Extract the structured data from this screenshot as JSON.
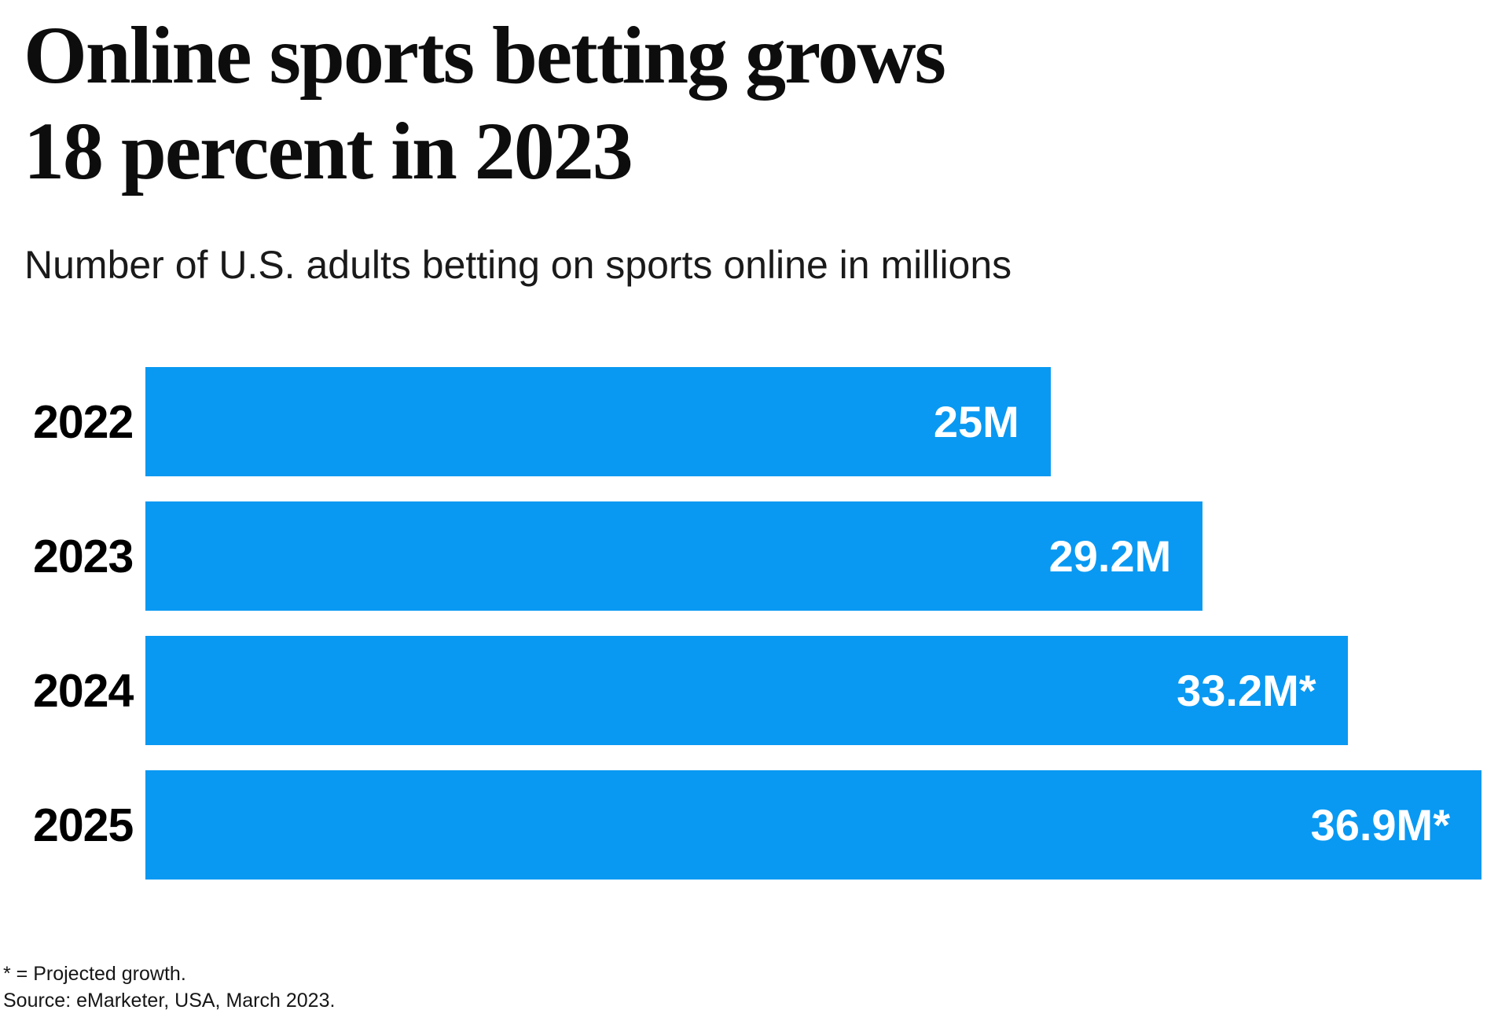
{
  "header": {
    "title_line1": "Online sports betting grows",
    "title_line2": "18 percent in 2023",
    "subtitle": "Number of U.S. adults betting on sports online in millions"
  },
  "chart_data": {
    "type": "bar",
    "orientation": "horizontal",
    "title": "Online sports betting grows 18 percent in 2023",
    "subtitle": "Number of U.S. adults betting on sports online in millions",
    "categories": [
      "2022",
      "2023",
      "2024",
      "2025"
    ],
    "values": [
      25,
      29.2,
      33.2,
      36.9
    ],
    "value_labels": [
      "25M",
      "29.2M",
      "33.2M*",
      "36.9M*"
    ],
    "xlim": [
      0,
      36.9
    ],
    "grid": false,
    "legend": "none",
    "bar_color": "#0999f2",
    "value_label_color": "#ffffff",
    "category_label_color": "#000000"
  },
  "footer": {
    "footnote": "* = Projected growth.",
    "source": "Source: eMarketer, USA, March 2023."
  }
}
